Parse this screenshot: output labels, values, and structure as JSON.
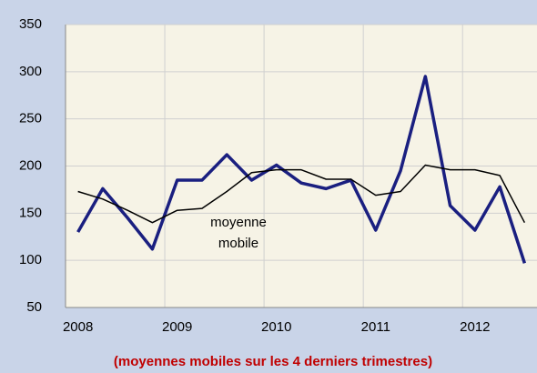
{
  "chart_data": {
    "type": "line",
    "categories": [
      "2008",
      null,
      null,
      null,
      "2009",
      null,
      null,
      null,
      "2010",
      null,
      null,
      null,
      "2011",
      null,
      null,
      null,
      "2012",
      null,
      null
    ],
    "series": [
      {
        "color": "#1a1f80",
        "values": [
          130,
          176,
          145,
          112,
          185,
          185,
          212,
          185,
          201,
          182,
          176,
          185,
          132,
          195,
          295,
          158,
          132,
          178,
          97
        ]
      },
      {
        "color": "#000000",
        "values": [
          173,
          165,
          153,
          140,
          153,
          155,
          173,
          193,
          196,
          196,
          186,
          186,
          169,
          173,
          201,
          196,
          196,
          190,
          140
        ]
      }
    ],
    "annotation": [
      "moyenne",
      "mobile"
    ],
    "ylim": [
      50,
      350
    ],
    "yticks": [
      50,
      100,
      150,
      200,
      250,
      300,
      350
    ],
    "grid": true,
    "footnote": "(moyennes mobiles sur les 4 derniers trimestres)"
  }
}
